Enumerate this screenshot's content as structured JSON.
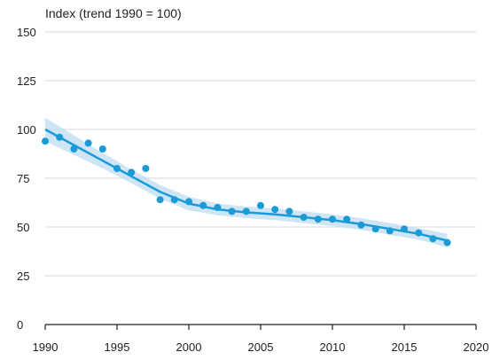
{
  "chart_data": {
    "type": "scatter",
    "ylabel": "Index (trend 1990 = 100)",
    "xlim": [
      1990,
      2020
    ],
    "ylim": [
      0,
      150
    ],
    "xticks": [
      1990,
      1995,
      2000,
      2005,
      2010,
      2015,
      2020
    ],
    "yticks": [
      0,
      25,
      50,
      75,
      100,
      125,
      150
    ],
    "grid": "horizontal",
    "legend": "none",
    "colors": {
      "points": "#1a9ad6",
      "trend": "#1a9ad6",
      "band": "#bcdcf0",
      "grid": "#d9d9d9",
      "axis": "#222222"
    },
    "series": [
      {
        "type": "points",
        "x": [
          1990,
          1991,
          1992,
          1993,
          1994,
          1995,
          1996,
          1997,
          1998,
          1999,
          2000,
          2001,
          2002,
          2003,
          2004,
          2005,
          2006,
          2007,
          2008,
          2009,
          2010,
          2011,
          2012,
          2013,
          2014,
          2015,
          2016,
          2017,
          2018
        ],
        "y": [
          94,
          96,
          90,
          93,
          90,
          80,
          78,
          80,
          64,
          64,
          63,
          61,
          60,
          58,
          58,
          61,
          59,
          58,
          55,
          54,
          54,
          54,
          51,
          49,
          48,
          49,
          47,
          44,
          42
        ]
      },
      {
        "type": "trend",
        "x": [
          1990,
          1992,
          1994,
          1996,
          1998,
          2000,
          2002,
          2004,
          2006,
          2008,
          2010,
          2012,
          2014,
          2016,
          2018
        ],
        "y": [
          100,
          92,
          84,
          76,
          68,
          62,
          59,
          57.5,
          56.5,
          55,
          53.5,
          51.5,
          49,
          46.5,
          43
        ],
        "band_width": [
          6,
          5,
          4,
          3.5,
          3.5,
          3.5,
          3,
          3,
          3,
          3,
          3,
          3,
          3,
          3,
          3.5
        ]
      }
    ]
  }
}
